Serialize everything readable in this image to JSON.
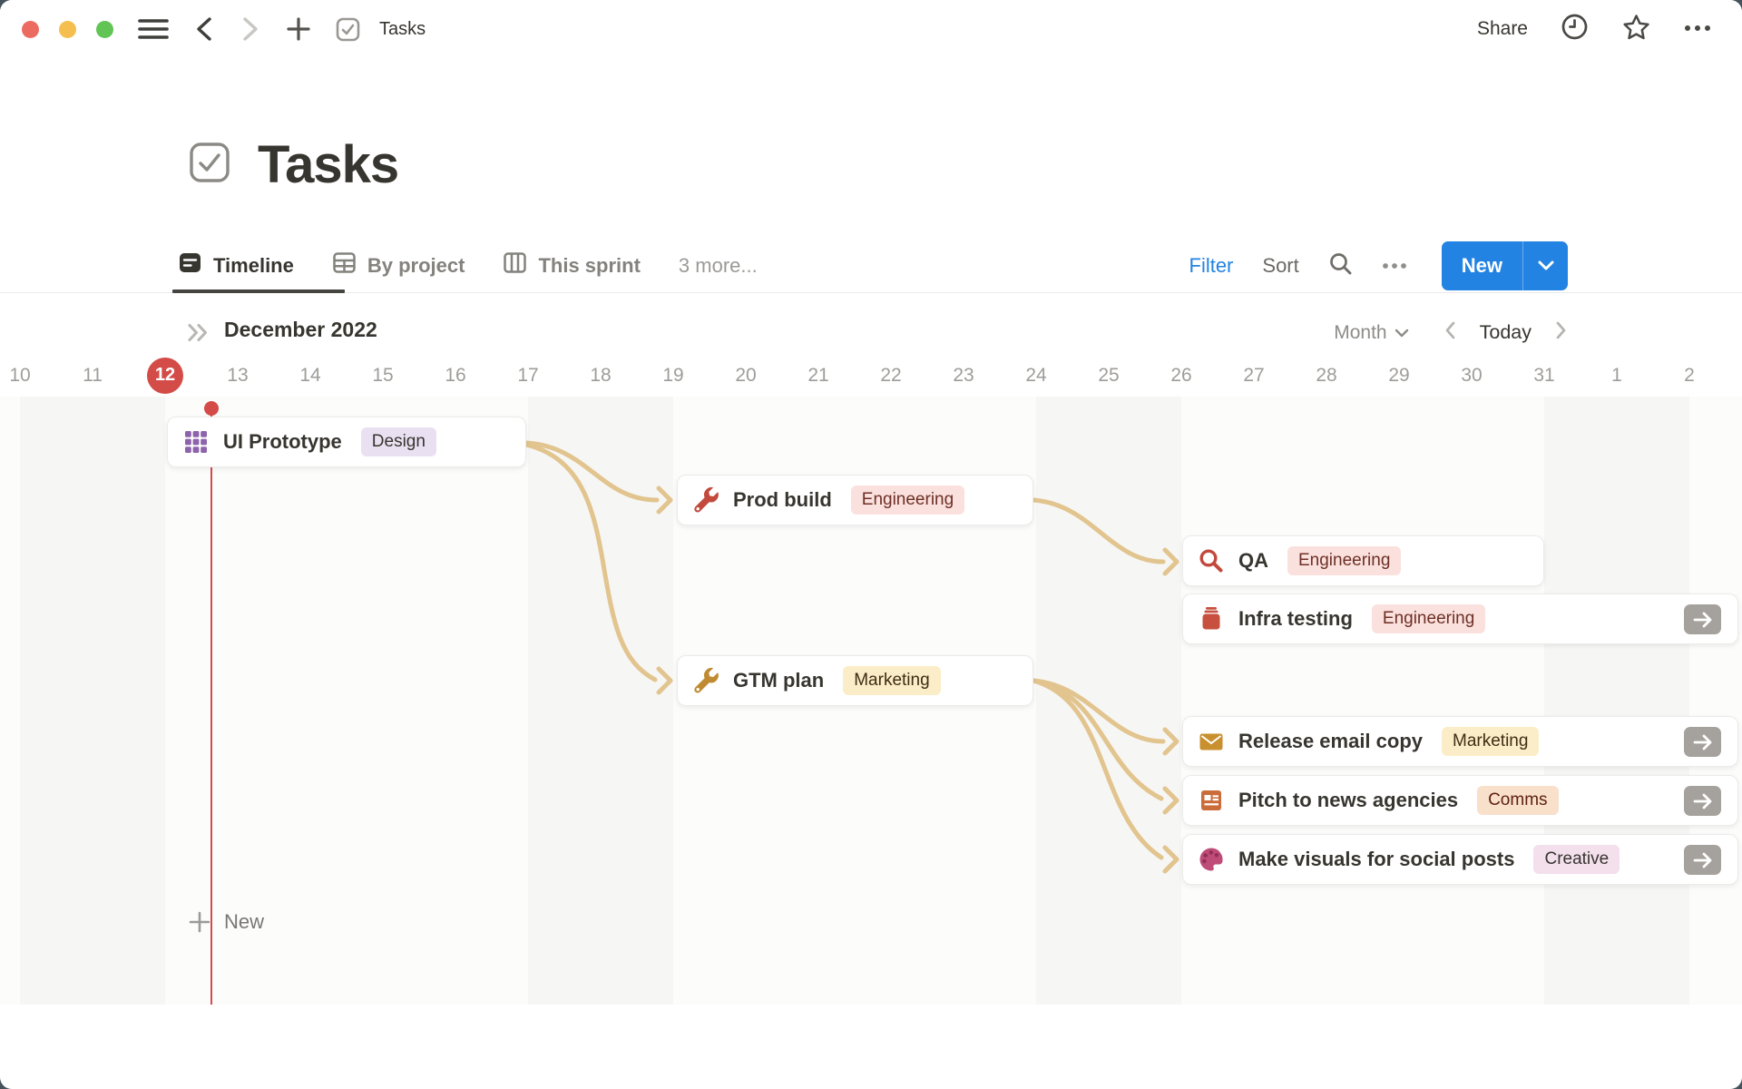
{
  "theme": {
    "accent_blue": "#2383e2",
    "today_red": "#d44c47",
    "connector_tan": "#e2c48e",
    "stripe_gray": "#f6f6f4",
    "timeline_bg": "#fcfcfb",
    "desktop_bg": "#44535c",
    "text_primary": "#37352f",
    "text_secondary": "#787774",
    "text_muted": "#9b9a97",
    "tag_purple_bg": "#e9e1f2",
    "tag_red_bg": "#fae1dd",
    "tag_red_text": "#6e2f26",
    "tag_yellow_bg": "#fbedc7",
    "tag_yellow_text": "#3f2d15",
    "tag_orange_bg": "#f8e0cb",
    "tag_orange_text": "#5f2110",
    "tag_pink_bg": "#f4dfec"
  },
  "titlebar": {
    "doc_title": "Tasks",
    "share_label": "Share"
  },
  "page": {
    "title": "Tasks"
  },
  "tabs": [
    {
      "label": "Timeline",
      "active": true
    },
    {
      "label": "By project",
      "active": false
    },
    {
      "label": "This sprint",
      "active": false
    },
    {
      "label": "3 more...",
      "active": false
    }
  ],
  "view_toolbar": {
    "filter_label": "Filter",
    "sort_label": "Sort",
    "new_label": "New"
  },
  "timeline": {
    "period_label": "December 2022",
    "zoom_level": "Month",
    "today_label": "Today",
    "dates": [
      "10",
      "11",
      "12",
      "13",
      "14",
      "15",
      "16",
      "17",
      "18",
      "19",
      "20",
      "21",
      "22",
      "23",
      "24",
      "25",
      "26",
      "27",
      "28",
      "29",
      "30",
      "31",
      "1",
      "2"
    ],
    "today_index": 2,
    "new_row_label": "New"
  },
  "tasks": [
    {
      "title": "UI Prototype",
      "tag": "Design",
      "tag_color": "purple",
      "icon": "grid-icon"
    },
    {
      "title": "Prod build",
      "tag": "Engineering",
      "tag_color": "red",
      "icon": "wrench-icon"
    },
    {
      "title": "QA",
      "tag": "Engineering",
      "tag_color": "red",
      "icon": "magnifier-icon"
    },
    {
      "title": "Infra testing",
      "tag": "Engineering",
      "tag_color": "red",
      "icon": "toolbox-icon"
    },
    {
      "title": "GTM plan",
      "tag": "Marketing",
      "tag_color": "yellow",
      "icon": "wrench-icon"
    },
    {
      "title": "Release email copy",
      "tag": "Marketing",
      "tag_color": "yellow",
      "icon": "envelope-icon"
    },
    {
      "title": "Pitch to news agencies",
      "tag": "Comms",
      "tag_color": "orange",
      "icon": "newspaper-icon"
    },
    {
      "title": "Make visuals for social posts",
      "tag": "Creative",
      "tag_color": "pink",
      "icon": "palette-icon"
    }
  ],
  "dependencies": [
    {
      "from": "UI Prototype",
      "to": "Prod build"
    },
    {
      "from": "UI Prototype",
      "to": "GTM plan"
    },
    {
      "from": "Prod build",
      "to": "QA"
    },
    {
      "from": "GTM plan",
      "to": "Release email copy"
    },
    {
      "from": "GTM plan",
      "to": "Pitch to news agencies"
    },
    {
      "from": "GTM plan",
      "to": "Make visuals for social posts"
    }
  ]
}
